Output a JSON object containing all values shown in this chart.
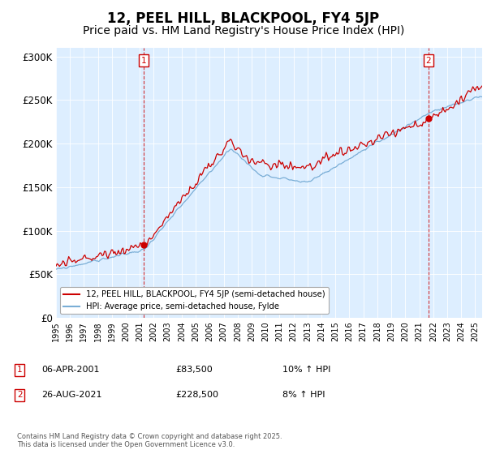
{
  "title": "12, PEEL HILL, BLACKPOOL, FY4 5JP",
  "subtitle": "Price paid vs. HM Land Registry's House Price Index (HPI)",
  "ylabel_ticks": [
    "£0",
    "£50K",
    "£100K",
    "£150K",
    "£200K",
    "£250K",
    "£300K"
  ],
  "ytick_values": [
    0,
    50000,
    100000,
    150000,
    200000,
    250000,
    300000
  ],
  "ylim": [
    0,
    310000
  ],
  "xlim_start": 1995.0,
  "xlim_end": 2025.5,
  "marker1_x": 2001.27,
  "marker1_y": 83500,
  "marker2_x": 2021.65,
  "marker2_y": 228500,
  "legend_line1": "12, PEEL HILL, BLACKPOOL, FY4 5JP (semi-detached house)",
  "legend_line2": "HPI: Average price, semi-detached house, Fylde",
  "annotation1_date": "06-APR-2001",
  "annotation1_price": "£83,500",
  "annotation1_hpi": "10% ↑ HPI",
  "annotation2_date": "26-AUG-2021",
  "annotation2_price": "£228,500",
  "annotation2_hpi": "8% ↑ HPI",
  "copyright_text": "Contains HM Land Registry data © Crown copyright and database right 2025.\nThis data is licensed under the Open Government Licence v3.0.",
  "line1_color": "#cc0000",
  "line2_color": "#7aaed6",
  "bg_color": "#ffffff",
  "chart_bg_color": "#ddeeff",
  "grid_color": "#ffffff",
  "title_fontsize": 12,
  "subtitle_fontsize": 10
}
